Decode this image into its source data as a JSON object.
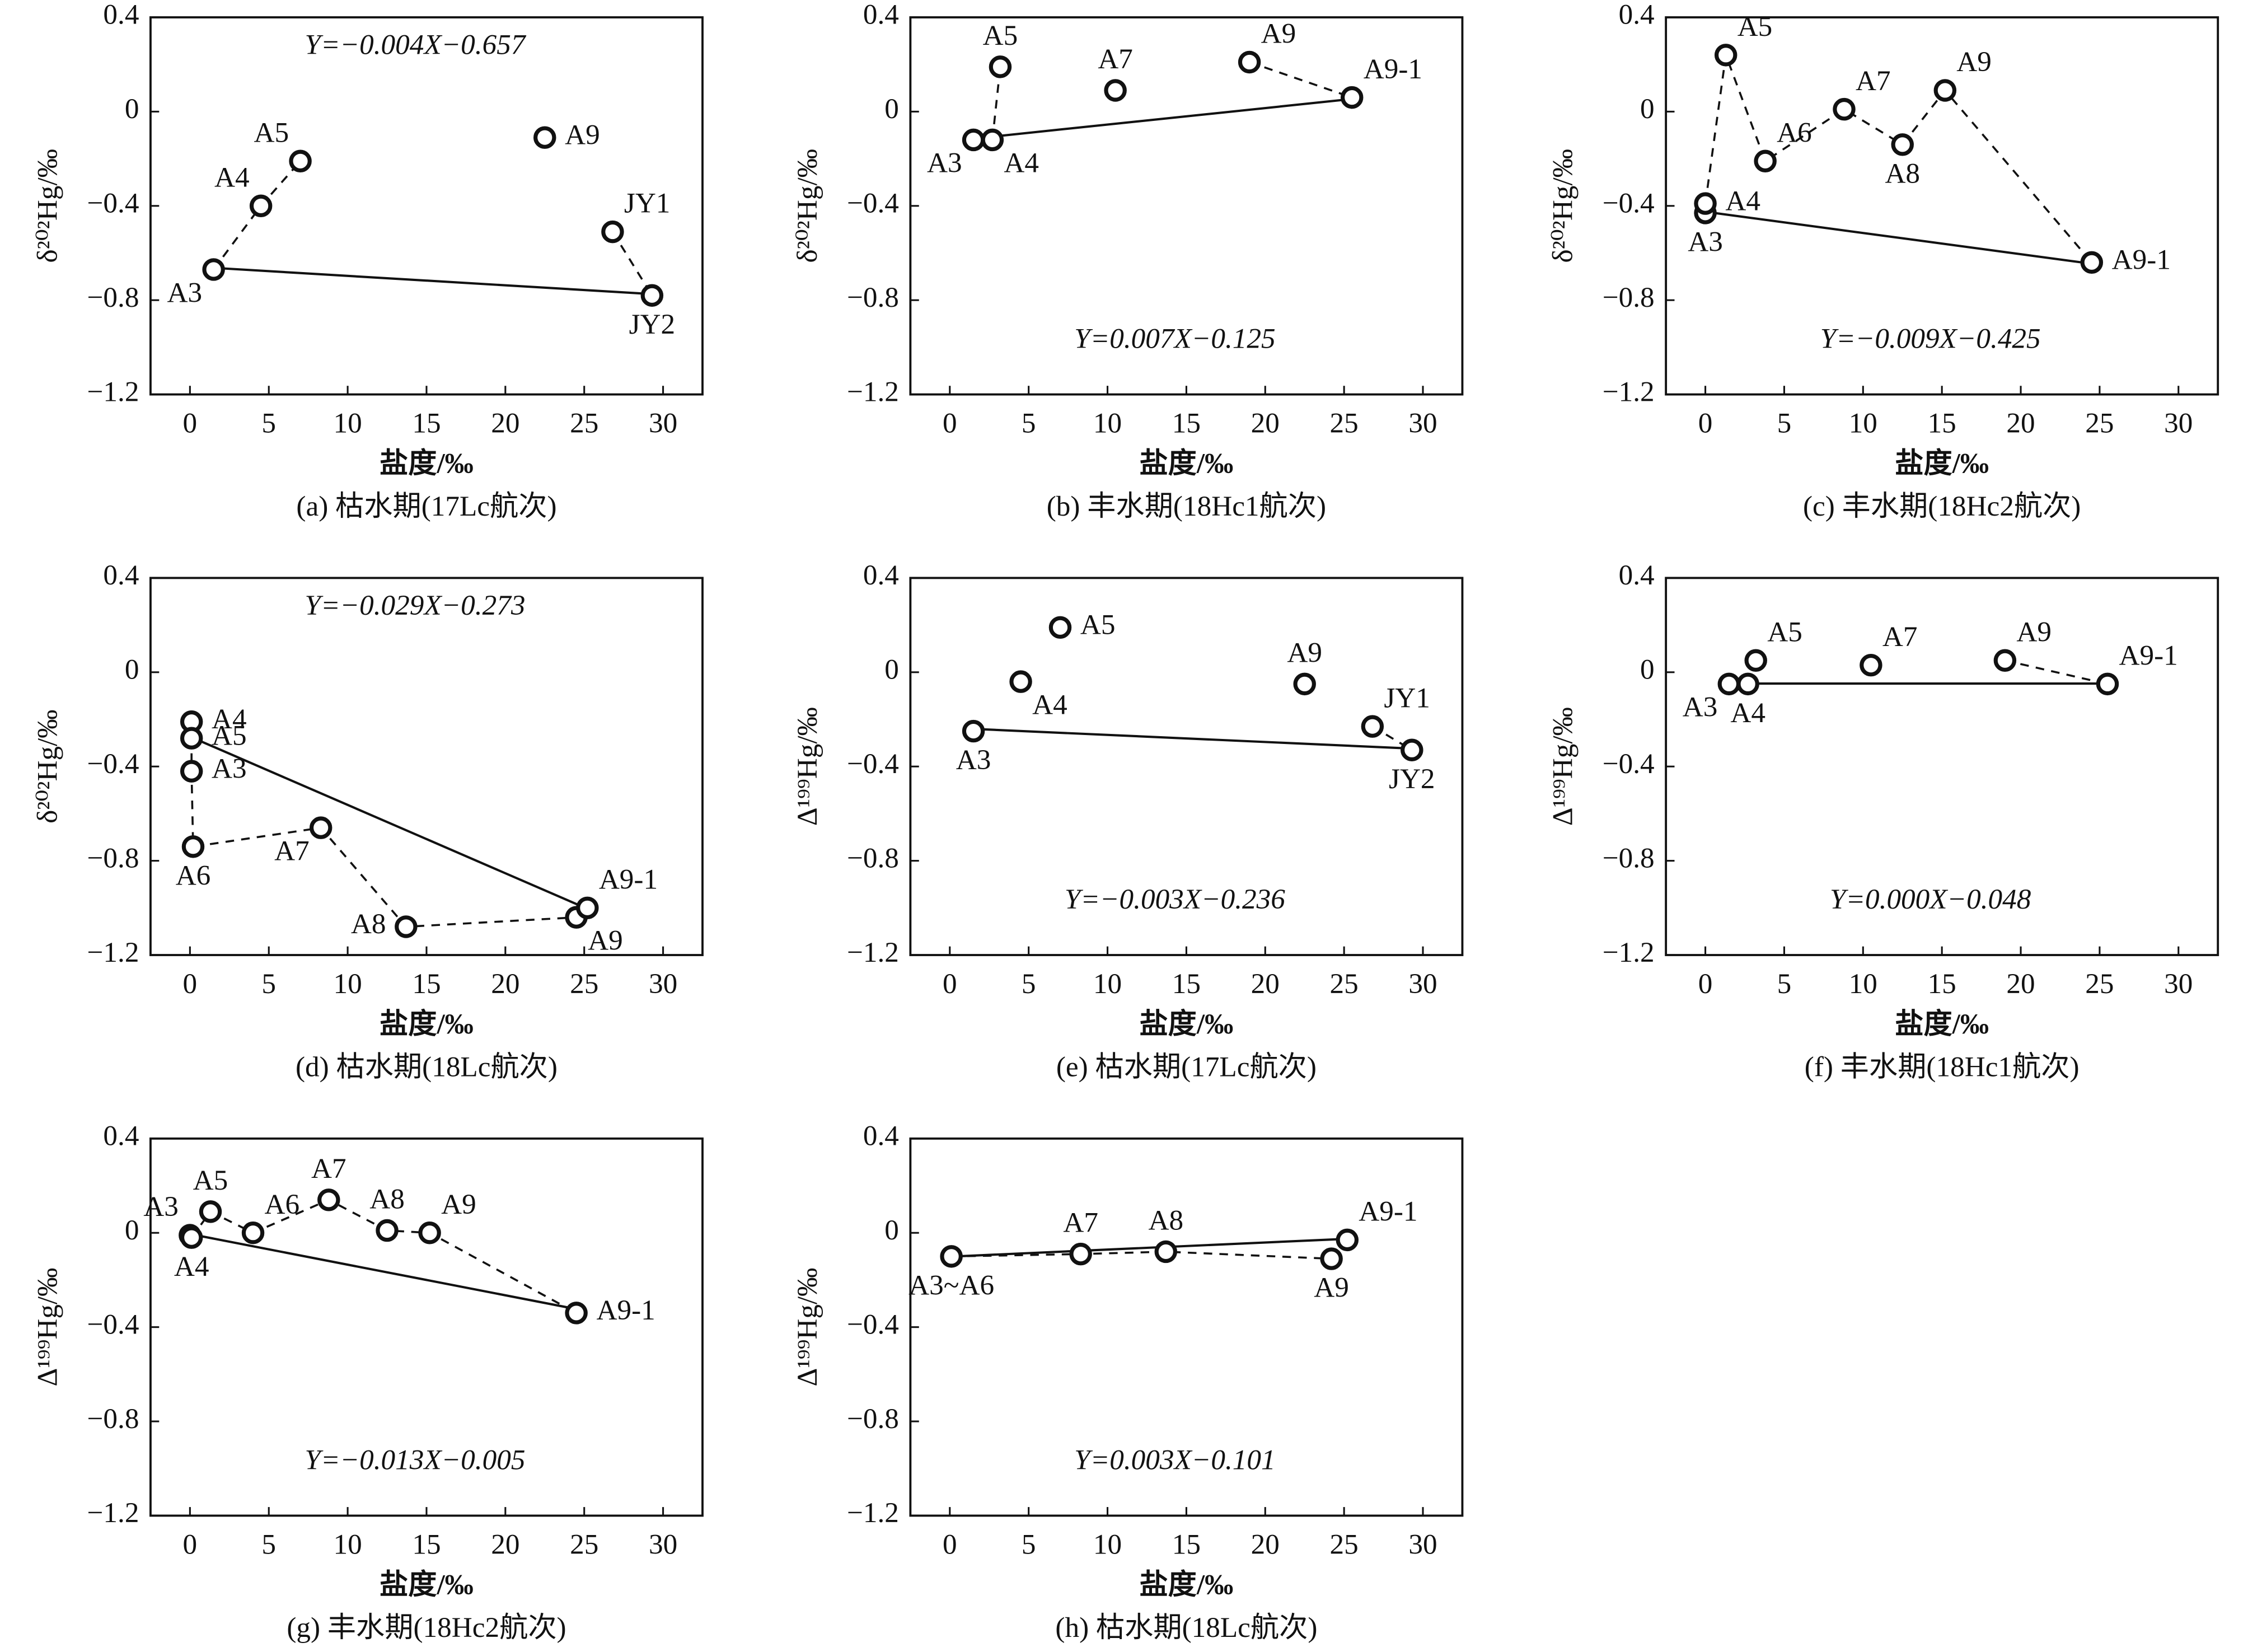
{
  "chart_data": [
    {
      "type": "scatter",
      "title": "(a) 枯水期(17Lc航次)",
      "xlabel": "盐度/‰",
      "ylabel": "δ²⁰²Hg/‰",
      "annotation": "Y=−0.004X−0.657",
      "x": [
        1.5,
        4.5,
        7,
        22.5,
        26.8,
        29.3
      ],
      "values": [
        -0.67,
        -0.4,
        -0.21,
        -0.11,
        -0.51,
        -0.78
      ],
      "point_labels": [
        "A3",
        "A4",
        "A5",
        "A9",
        "JY1",
        "JY2"
      ],
      "dashed": [
        [
          0,
          1,
          2
        ],
        [
          4,
          5
        ]
      ],
      "fit": {
        "slope": -0.004,
        "intercept": -0.657
      },
      "xlim": [
        -2.5,
        32.5
      ],
      "xticks": [
        0,
        5,
        10,
        15,
        20,
        25,
        30
      ],
      "ylim": [
        -1.2,
        0.4
      ],
      "yticks": [
        {
          "value": -1.2,
          "label": "−1.2"
        },
        {
          "value": -0.8,
          "label": "−0.8"
        },
        {
          "value": -0.4,
          "label": "−0.4"
        },
        0,
        0.4
      ]
    },
    {
      "type": "scatter",
      "title": "(b) 丰水期(18Hc1航次)",
      "xlabel": "盐度/‰",
      "ylabel": "δ²⁰²Hg/‰",
      "annotation": "Y=0.007X−0.125",
      "x": [
        1.5,
        2.7,
        3.2,
        10.5,
        19,
        25.5
      ],
      "values": [
        -0.12,
        -0.12,
        0.19,
        0.09,
        0.21,
        0.06
      ],
      "point_labels": [
        "A3",
        "A4",
        "A5",
        "A7",
        "A9",
        "A9-1"
      ],
      "dashed": [
        [
          1,
          2
        ],
        [
          4,
          5
        ]
      ],
      "fit": {
        "slope": 0.007,
        "intercept": -0.125
      },
      "xlim": [
        -2.5,
        32.5
      ],
      "xticks": [
        0,
        5,
        10,
        15,
        20,
        25,
        30
      ],
      "ylim": [
        -1.2,
        0.4
      ],
      "yticks": [
        {
          "value": -1.2,
          "label": "−1.2"
        },
        {
          "value": -0.8,
          "label": "−0.8"
        },
        {
          "value": -0.4,
          "label": "−0.4"
        },
        0,
        0.4
      ]
    },
    {
      "type": "scatter",
      "title": "(c) 丰水期(18Hc2航次)",
      "xlabel": "盐度/‰",
      "ylabel": "δ²⁰²Hg/‰",
      "annotation": "Y=−0.009X−0.425",
      "x": [
        0,
        0,
        1.3,
        3.8,
        8.8,
        12.5,
        15.2,
        24.5
      ],
      "values": [
        -0.43,
        -0.39,
        0.24,
        -0.21,
        0.01,
        -0.14,
        0.09,
        -0.64
      ],
      "point_labels": [
        "A3",
        "A4",
        "A5",
        "A6",
        "A7",
        "A8",
        "A9",
        "A9-1"
      ],
      "dashed": [
        [
          1,
          2,
          3,
          4,
          5,
          6,
          7
        ]
      ],
      "fit": {
        "slope": -0.009,
        "intercept": -0.425
      },
      "xlim": [
        -2.5,
        32.5
      ],
      "xticks": [
        0,
        5,
        10,
        15,
        20,
        25,
        30
      ],
      "ylim": [
        -1.2,
        0.4
      ],
      "yticks": [
        {
          "value": -1.2,
          "label": "−1.2"
        },
        {
          "value": -0.8,
          "label": "−0.8"
        },
        {
          "value": -0.4,
          "label": "−0.4"
        },
        0,
        0.4
      ]
    },
    {
      "type": "scatter",
      "title": "(d) 枯水期(18Lc航次)",
      "xlabel": "盐度/‰",
      "ylabel": "δ²⁰²Hg/‰",
      "annotation": "Y=−0.029X−0.273",
      "x": [
        0.1,
        0.1,
        0.1,
        0.2,
        8.3,
        13.7,
        24.5,
        25.2
      ],
      "values": [
        -0.42,
        -0.21,
        -0.28,
        -0.74,
        -0.66,
        -1.08,
        -1.04,
        -1.0
      ],
      "point_labels": [
        "A3",
        "A4",
        "A5",
        "A6",
        "A7",
        "A8",
        "A9",
        "A9-1"
      ],
      "dashed": [
        [
          1,
          2,
          0,
          3,
          4,
          5,
          6
        ]
      ],
      "fit": {
        "slope": -0.029,
        "intercept": -0.273
      },
      "xlim": [
        -2.5,
        32.5
      ],
      "xticks": [
        0,
        5,
        10,
        15,
        20,
        25,
        30
      ],
      "ylim": [
        -1.2,
        0.4
      ],
      "yticks": [
        {
          "value": -1.2,
          "label": "−1.2"
        },
        {
          "value": -0.8,
          "label": "−0.8"
        },
        {
          "value": -0.4,
          "label": "−0.4"
        },
        0,
        0.4
      ]
    },
    {
      "type": "scatter",
      "title": "(e) 枯水期(17Lc航次)",
      "xlabel": "盐度/‰",
      "ylabel": "Δ¹⁹⁹Hg/‰",
      "annotation": "Y=−0.003X−0.236",
      "x": [
        1.5,
        4.5,
        7,
        22.5,
        26.8,
        29.3
      ],
      "values": [
        -0.25,
        -0.04,
        0.19,
        -0.05,
        -0.23,
        -0.33
      ],
      "point_labels": [
        "A3",
        "A4",
        "A5",
        "A9",
        "JY1",
        "JY2"
      ],
      "dashed": [
        [
          4,
          5
        ]
      ],
      "fit": {
        "slope": -0.003,
        "intercept": -0.236
      },
      "xlim": [
        -2.5,
        32.5
      ],
      "xticks": [
        0,
        5,
        10,
        15,
        20,
        25,
        30
      ],
      "ylim": [
        -1.2,
        0.4
      ],
      "yticks": [
        {
          "value": -1.2,
          "label": "−1.2"
        },
        {
          "value": -0.8,
          "label": "−0.8"
        },
        {
          "value": -0.4,
          "label": "−0.4"
        },
        0,
        0.4
      ]
    },
    {
      "type": "scatter",
      "title": "(f) 丰水期(18Hc1航次)",
      "xlabel": "盐度/‰",
      "ylabel": "Δ¹⁹⁹Hg/‰",
      "annotation": "Y=0.000X−0.048",
      "x": [
        1.5,
        2.7,
        3.2,
        10.5,
        19,
        25.5
      ],
      "values": [
        -0.05,
        -0.05,
        0.05,
        0.03,
        0.05,
        -0.05
      ],
      "point_labels": [
        "A3",
        "A4",
        "A5",
        "A7",
        "A9",
        "A9-1"
      ],
      "dashed": [
        [
          1,
          2
        ],
        [
          4,
          5
        ]
      ],
      "fit": {
        "slope": 0.0,
        "intercept": -0.048
      },
      "xlim": [
        -2.5,
        32.5
      ],
      "xticks": [
        0,
        5,
        10,
        15,
        20,
        25,
        30
      ],
      "ylim": [
        -1.2,
        0.4
      ],
      "yticks": [
        {
          "value": -1.2,
          "label": "−1.2"
        },
        {
          "value": -0.8,
          "label": "−0.8"
        },
        {
          "value": -0.4,
          "label": "−0.4"
        },
        0,
        0.4
      ]
    },
    {
      "type": "scatter",
      "title": "(g) 丰水期(18Hc2航次)",
      "xlabel": "盐度/‰",
      "ylabel": "Δ¹⁹⁹Hg/‰",
      "annotation": "Y=−0.013X−0.005",
      "x": [
        0,
        0.1,
        1.3,
        4,
        8.8,
        12.5,
        15.2,
        24.5
      ],
      "values": [
        -0.01,
        -0.02,
        0.09,
        0.0,
        0.14,
        0.01,
        0.0,
        -0.34
      ],
      "point_labels": [
        "A3",
        "A4",
        "A5",
        "A6",
        "A7",
        "A8",
        "A9",
        "A9-1"
      ],
      "dashed": [
        [
          1,
          2,
          3,
          4,
          5,
          6,
          7
        ]
      ],
      "fit": {
        "slope": -0.013,
        "intercept": -0.005
      },
      "xlim": [
        -2.5,
        32.5
      ],
      "xticks": [
        0,
        5,
        10,
        15,
        20,
        25,
        30
      ],
      "ylim": [
        -1.2,
        0.4
      ],
      "yticks": [
        {
          "value": -1.2,
          "label": "−1.2"
        },
        {
          "value": -0.8,
          "label": "−0.8"
        },
        {
          "value": -0.4,
          "label": "−0.4"
        },
        0,
        0.4
      ]
    },
    {
      "type": "scatter",
      "title": "(h) 枯水期(18Lc航次)",
      "xlabel": "盐度/‰",
      "ylabel": "Δ¹⁹⁹Hg/‰",
      "annotation": "Y=0.003X−0.101",
      "x": [
        0.1,
        8.3,
        13.7,
        24.2,
        25.2
      ],
      "values": [
        -0.1,
        -0.09,
        -0.08,
        -0.11,
        -0.03
      ],
      "point_labels": [
        "A3~A6",
        "A7",
        "A8",
        "A9",
        "A9-1"
      ],
      "dashed": [
        [
          0,
          1,
          2,
          3
        ]
      ],
      "fit": {
        "slope": 0.003,
        "intercept": -0.101
      },
      "xlim": [
        -2.5,
        32.5
      ],
      "xticks": [
        0,
        5,
        10,
        15,
        20,
        25,
        30
      ],
      "ylim": [
        -1.2,
        0.4
      ],
      "yticks": [
        {
          "value": -1.2,
          "label": "−1.2"
        },
        {
          "value": -0.8,
          "label": "−0.8"
        },
        {
          "value": -0.4,
          "label": "−0.4"
        },
        0,
        0.4
      ]
    }
  ]
}
